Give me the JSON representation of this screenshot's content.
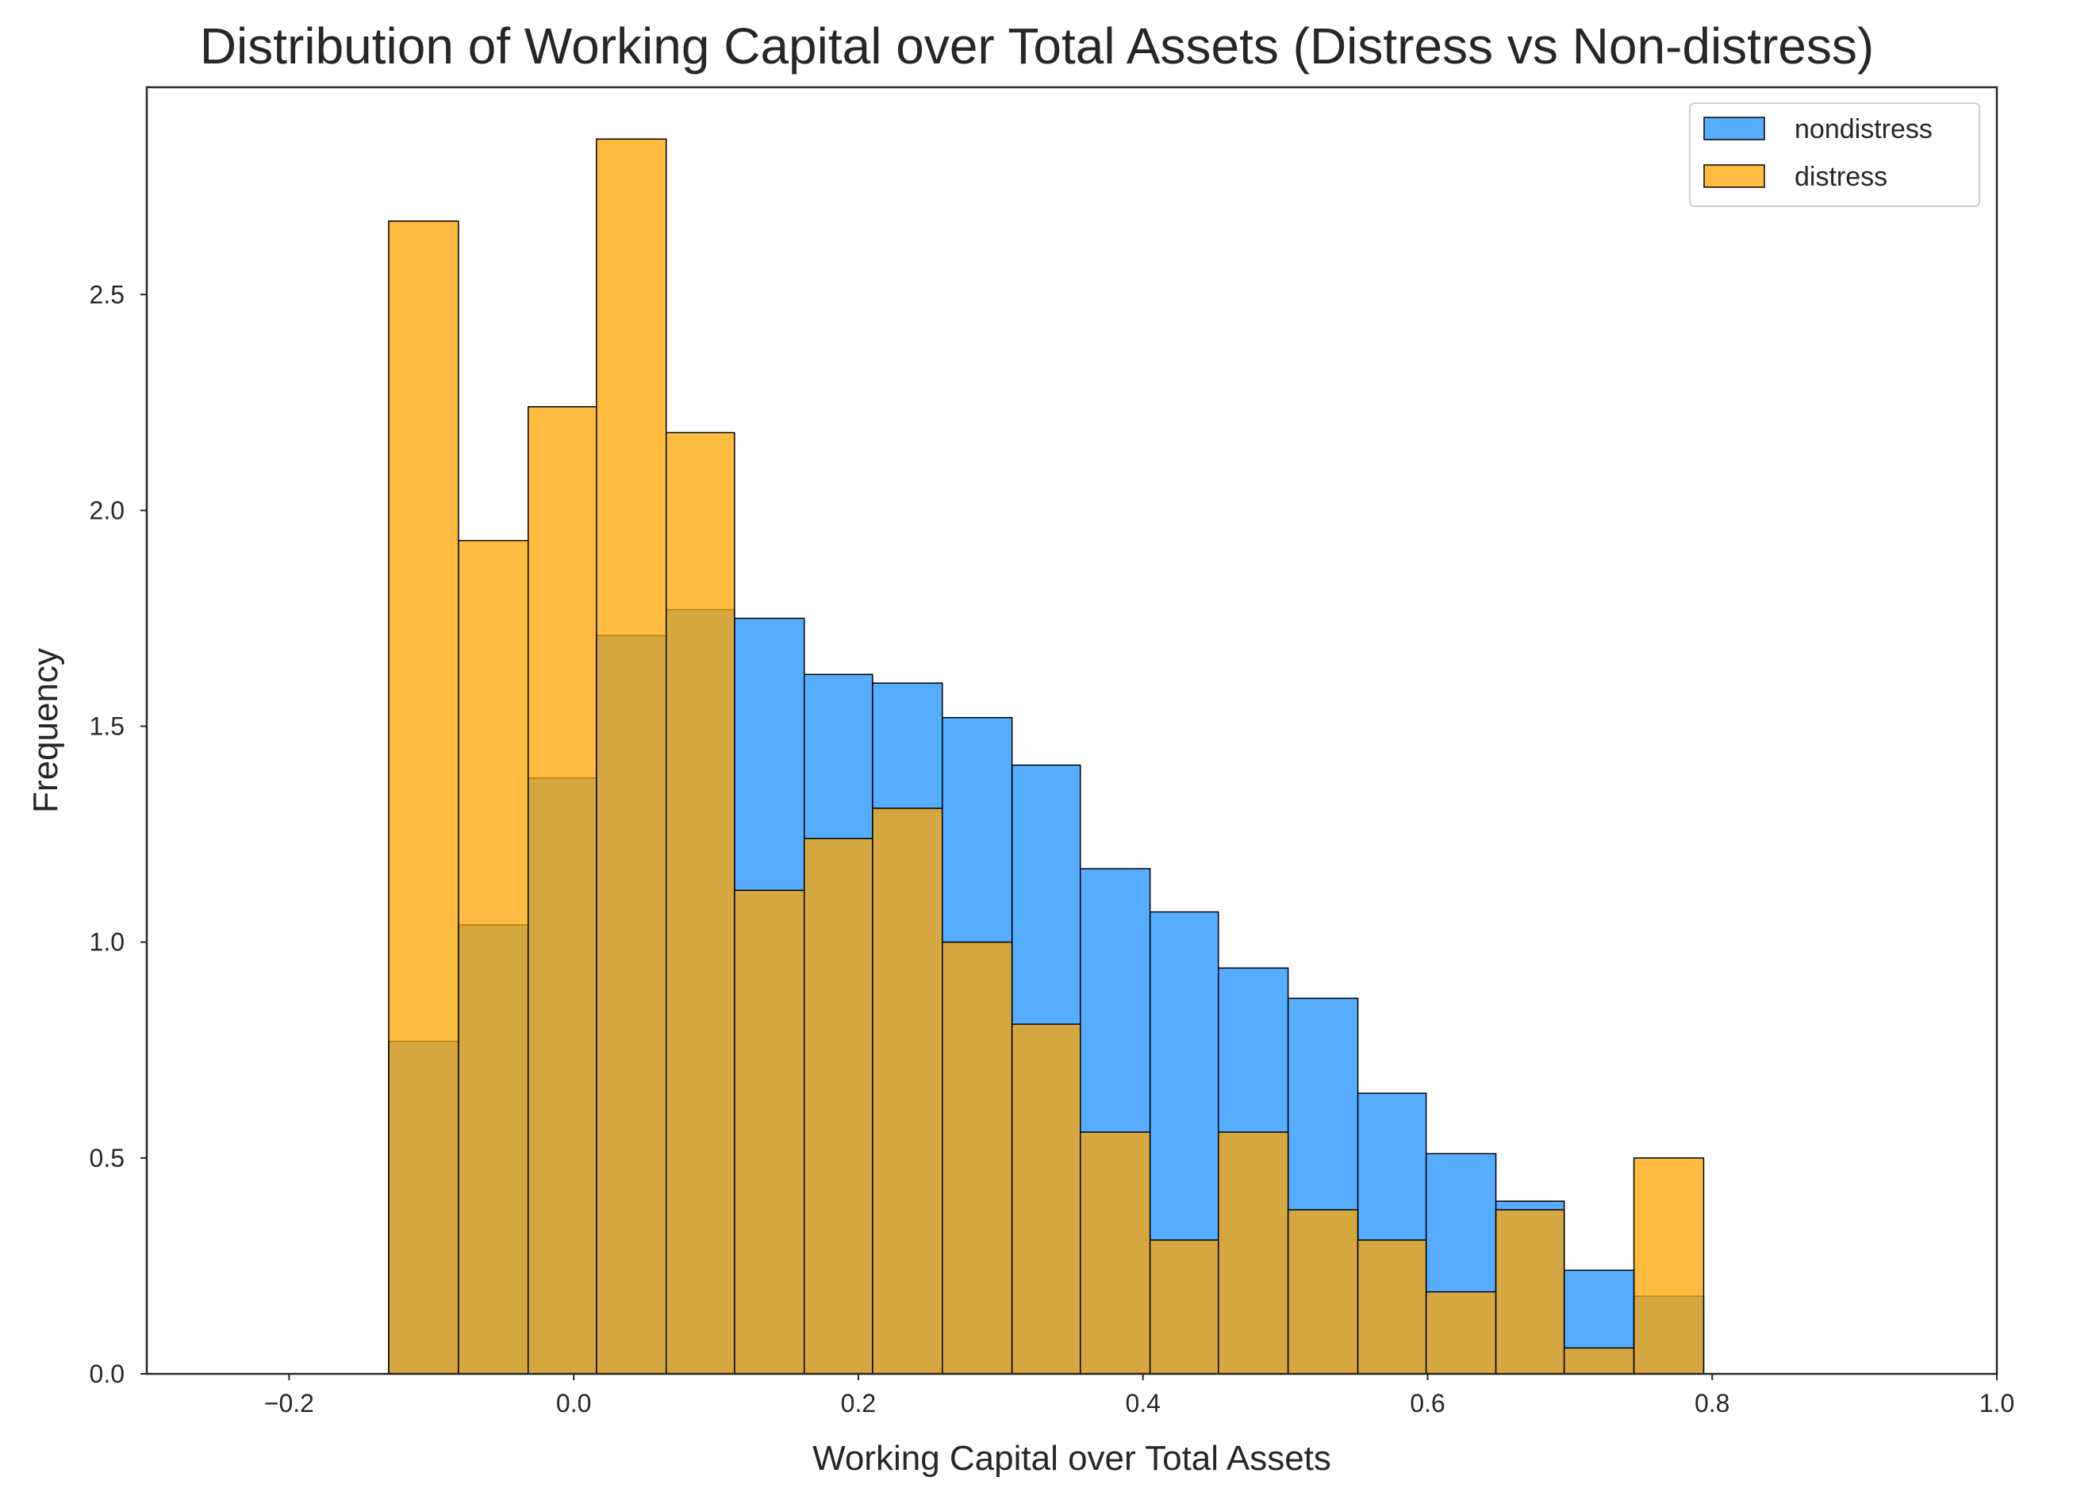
{
  "chart_data": {
    "type": "bar",
    "subtype": "overlapping-histogram",
    "title": "Distribution of Working Capital over Total Assets (Distress vs Non-distress)",
    "xlabel": "Working Capital over Total Assets",
    "ylabel": "Frequency",
    "xlim": [
      -0.3,
      1.0
    ],
    "ylim": [
      0,
      2.98
    ],
    "xticks": [
      -0.2,
      0.0,
      0.2,
      0.4,
      0.6,
      0.8,
      1.0
    ],
    "xtick_labels": [
      "−0.2",
      "0.0",
      "0.2",
      "0.4",
      "0.6",
      "0.8",
      "1.0"
    ],
    "yticks": [
      0.0,
      0.5,
      1.0,
      1.5,
      2.0,
      2.5
    ],
    "ytick_labels": [
      "0.0",
      "0.5",
      "1.0",
      "1.5",
      "2.0",
      "2.5"
    ],
    "grid": false,
    "legend_position": "top-right",
    "bin_edges": [
      -0.13,
      -0.081,
      -0.032,
      0.016,
      0.065,
      0.113,
      0.162,
      0.21,
      0.259,
      0.308,
      0.356,
      0.405,
      0.453,
      0.502,
      0.551,
      0.599,
      0.648,
      0.696,
      0.745,
      0.794
    ],
    "series": [
      {
        "name": "nondistress",
        "color": "#1E90FF",
        "values": [
          0.77,
          1.04,
          1.38,
          1.71,
          1.77,
          1.75,
          1.62,
          1.6,
          1.52,
          1.41,
          1.17,
          1.07,
          0.94,
          0.87,
          0.65,
          0.51,
          0.4,
          0.24,
          0.18
        ]
      },
      {
        "name": "distress",
        "color": "#FFA500",
        "values": [
          2.67,
          1.93,
          2.24,
          2.86,
          2.18,
          1.12,
          1.24,
          1.31,
          1.0,
          0.81,
          0.56,
          0.31,
          0.56,
          0.38,
          0.31,
          0.19,
          0.38,
          0.06,
          0.5
        ]
      }
    ]
  }
}
